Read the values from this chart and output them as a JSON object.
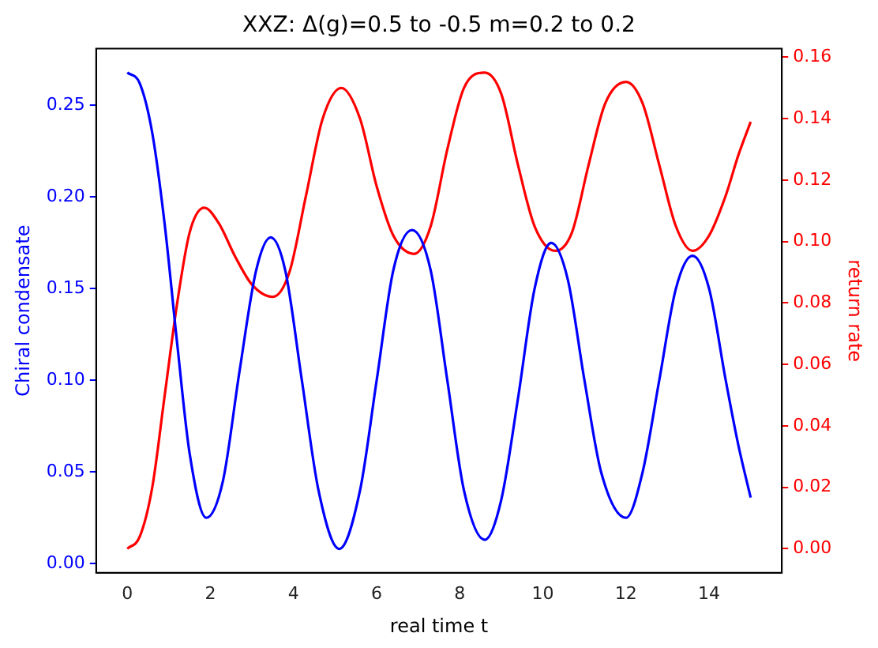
{
  "chart_data": {
    "type": "line",
    "title": "XXZ: Δ(g)=0.5 to -0.5 m=0.2 to 0.2",
    "xlabel": "real time t",
    "ylabel": "Chiral condensate",
    "y2label": "return rate",
    "grid": false,
    "legend": false,
    "marker": "none",
    "line_style": "solid",
    "xlim": [
      -0.75,
      15.75
    ],
    "xticks": [
      0,
      2,
      4,
      6,
      8,
      10,
      12,
      14
    ],
    "ylim": [
      -0.005,
      0.281
    ],
    "yticks": [
      {
        "value": 0,
        "label": "0.00"
      },
      {
        "value": 0.05,
        "label": "0.05"
      },
      {
        "value": 0.1,
        "label": "0.10"
      },
      {
        "value": 0.15,
        "label": "0.15"
      },
      {
        "value": 0.2,
        "label": "0.20"
      },
      {
        "value": 0.25,
        "label": "0.25"
      }
    ],
    "y2lim": [
      -0.0078,
      0.1628
    ],
    "y2ticks": [
      {
        "value": 0,
        "label": "0.00"
      },
      {
        "value": 0.02,
        "label": "0.02"
      },
      {
        "value": 0.04,
        "label": "0.04"
      },
      {
        "value": 0.06,
        "label": "0.06"
      },
      {
        "value": 0.08,
        "label": "0.08"
      },
      {
        "value": 0.1,
        "label": "0.10"
      },
      {
        "value": 0.12,
        "label": "0.12"
      },
      {
        "value": 0.14,
        "label": "0.14"
      },
      {
        "value": 0.16,
        "label": "0.16"
      }
    ],
    "series": [
      {
        "color": "#0000ff",
        "x": [
          0,
          0.3,
          0.6,
          0.9,
          1.2,
          1.5,
          1.9,
          2.3,
          2.7,
          3.1,
          3.45,
          3.8,
          4.2,
          4.6,
          5.1,
          5.6,
          6.0,
          6.4,
          6.85,
          7.3,
          7.7,
          8.1,
          8.6,
          9.0,
          9.4,
          9.8,
          10.2,
          10.6,
          11.0,
          11.4,
          12.0,
          12.4,
          12.8,
          13.2,
          13.6,
          14.0,
          14.4,
          14.7,
          15
        ],
        "values": [
          0.268,
          0.262,
          0.235,
          0.185,
          0.12,
          0.06,
          0.025,
          0.045,
          0.105,
          0.16,
          0.178,
          0.16,
          0.1,
          0.04,
          0.008,
          0.04,
          0.1,
          0.16,
          0.182,
          0.16,
          0.1,
          0.04,
          0.013,
          0.035,
          0.09,
          0.15,
          0.175,
          0.155,
          0.1,
          0.05,
          0.025,
          0.05,
          0.1,
          0.15,
          0.168,
          0.15,
          0.1,
          0.065,
          0.036
        ]
      },
      {
        "color": "#ff0000",
        "axis": "y2",
        "x": [
          0,
          0.3,
          0.6,
          0.9,
          1.2,
          1.5,
          1.85,
          2.2,
          2.6,
          3.0,
          3.5,
          3.9,
          4.3,
          4.7,
          5.15,
          5.6,
          6.0,
          6.4,
          6.9,
          7.3,
          7.7,
          8.1,
          8.6,
          9.0,
          9.4,
          9.8,
          10.3,
          10.7,
          11.1,
          11.5,
          12.0,
          12.4,
          12.8,
          13.2,
          13.6,
          14.0,
          14.4,
          14.7,
          15
        ],
        "values": [
          0,
          0.004,
          0.02,
          0.05,
          0.08,
          0.103,
          0.111,
          0.106,
          0.095,
          0.086,
          0.082,
          0.09,
          0.115,
          0.14,
          0.15,
          0.14,
          0.118,
          0.102,
          0.096,
          0.105,
          0.13,
          0.15,
          0.155,
          0.148,
          0.125,
          0.105,
          0.097,
          0.103,
          0.125,
          0.145,
          0.152,
          0.145,
          0.125,
          0.105,
          0.097,
          0.102,
          0.115,
          0.128,
          0.139
        ]
      }
    ]
  }
}
